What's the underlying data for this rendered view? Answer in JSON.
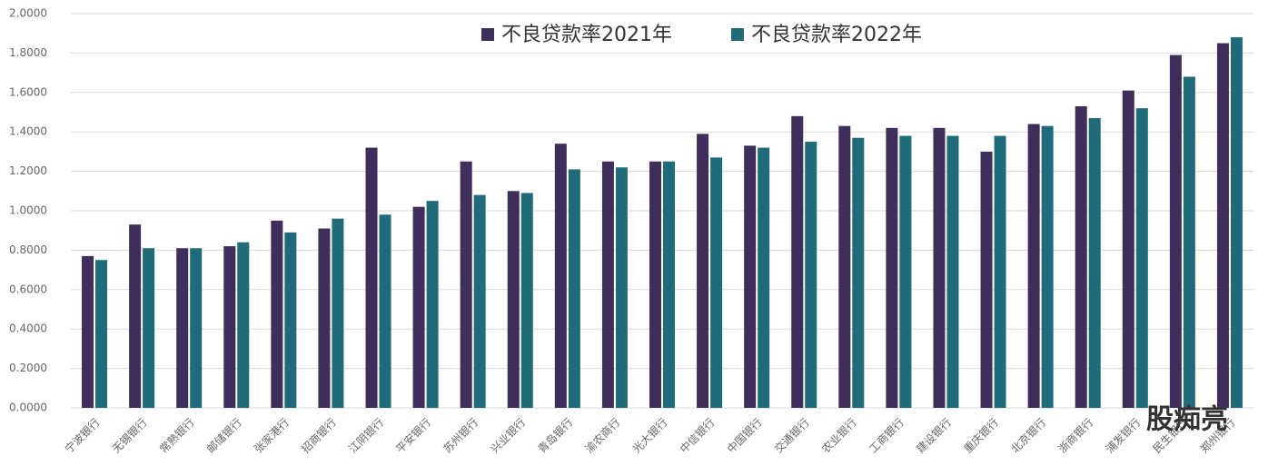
{
  "chart_data": {
    "type": "bar",
    "categories": [
      "宁波银行",
      "无锡银行",
      "常熟银行",
      "邮储银行",
      "张家港行",
      "招商银行",
      "江阴银行",
      "平安银行",
      "苏州银行",
      "兴业银行",
      "青岛银行",
      "渝农商行",
      "光大银行",
      "中信银行",
      "中国银行",
      "交通银行",
      "农业银行",
      "工商银行",
      "建设银行",
      "重庆银行",
      "北京银行",
      "浙商银行",
      "浦发银行",
      "民生银行",
      "郑州银行"
    ],
    "series": [
      {
        "name": "不良贷款率2021年",
        "color": "#3f2d5c",
        "values": [
          0.77,
          0.93,
          0.81,
          0.82,
          0.95,
          0.91,
          1.32,
          1.02,
          1.25,
          1.1,
          1.34,
          1.25,
          1.25,
          1.39,
          1.33,
          1.48,
          1.43,
          1.42,
          1.42,
          1.3,
          1.44,
          1.53,
          1.61,
          1.79,
          1.85
        ]
      },
      {
        "name": "不良贷款率2022年",
        "color": "#1f6b7a",
        "values": [
          0.75,
          0.81,
          0.81,
          0.84,
          0.89,
          0.96,
          0.98,
          1.05,
          1.08,
          1.09,
          1.21,
          1.22,
          1.25,
          1.27,
          1.32,
          1.35,
          1.37,
          1.38,
          1.38,
          1.38,
          1.43,
          1.47,
          1.52,
          1.68,
          1.88
        ]
      }
    ],
    "ylim": [
      0,
      2
    ],
    "yticks": [
      {
        "value": 0,
        "label": "0.0000"
      },
      {
        "value": 0.2,
        "label": "0.2000"
      },
      {
        "value": 0.4,
        "label": "0.4000"
      },
      {
        "value": 0.6,
        "label": "0.6000"
      },
      {
        "value": 0.8,
        "label": "0.8000"
      },
      {
        "value": 1,
        "label": "1.0000"
      },
      {
        "value": 1.2,
        "label": "1.2000"
      },
      {
        "value": 1.4,
        "label": "1.4000"
      },
      {
        "value": 1.6,
        "label": "1.6000"
      },
      {
        "value": 1.8,
        "label": "1.8000"
      },
      {
        "value": 2,
        "label": "2.0000"
      }
    ],
    "grid": true,
    "legend": "top",
    "watermark": "股痴亮"
  }
}
